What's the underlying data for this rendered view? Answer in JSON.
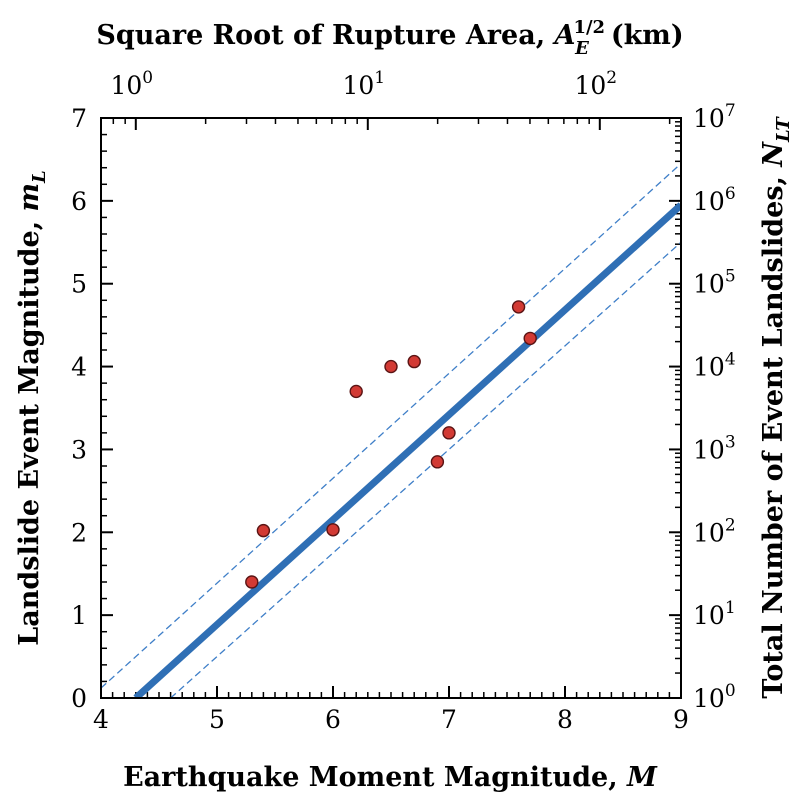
{
  "chart_data": {
    "type": "scatter",
    "xlabel": "Earthquake Moment Magnitude, ",
    "xlabel_symbol": "M",
    "ylabel": "Landslide Event Magnitude, ",
    "ylabel_symbol": "m",
    "ylabel_sub": "L",
    "top_label": "Square Root of Rupture Area, ",
    "top_label_symbol": "A",
    "top_label_sup": "1/2",
    "top_label_sub": "E",
    "top_label_units": "(km)",
    "right_label": "Total Number of Event Landslides, ",
    "right_label_symbol": "N",
    "right_label_sub": "LT",
    "xlim": [
      4,
      9
    ],
    "ylim": [
      0,
      7
    ],
    "x_ticks": [
      "4",
      "5",
      "6",
      "7",
      "8",
      "9"
    ],
    "y_ticks": [
      "0",
      "1",
      "2",
      "3",
      "4",
      "5",
      "6",
      "7"
    ],
    "top_ticks": [
      {
        "base": "10",
        "exp": "0",
        "M": 4.3
      },
      {
        "base": "10",
        "exp": "1",
        "M": 6.3
      },
      {
        "base": "10",
        "exp": "2",
        "M": 8.3
      }
    ],
    "right_ticks": [
      {
        "base": "10",
        "exp": "0",
        "mL": 0
      },
      {
        "base": "10",
        "exp": "1",
        "mL": 1
      },
      {
        "base": "10",
        "exp": "2",
        "mL": 2
      },
      {
        "base": "10",
        "exp": "3",
        "mL": 3
      },
      {
        "base": "10",
        "exp": "4",
        "mL": 4
      },
      {
        "base": "10",
        "exp": "5",
        "mL": 5
      },
      {
        "base": "10",
        "exp": "6",
        "mL": 6
      },
      {
        "base": "10",
        "exp": "7",
        "mL": 7
      }
    ],
    "points": [
      {
        "M": 5.3,
        "mL": 1.4
      },
      {
        "M": 5.4,
        "mL": 2.02
      },
      {
        "M": 6.0,
        "mL": 2.03
      },
      {
        "M": 6.2,
        "mL": 3.7
      },
      {
        "M": 6.5,
        "mL": 4.0
      },
      {
        "M": 6.7,
        "mL": 4.06
      },
      {
        "M": 6.9,
        "mL": 2.85
      },
      {
        "M": 7.0,
        "mL": 3.2
      },
      {
        "M": 7.6,
        "mL": 4.72
      },
      {
        "M": 7.7,
        "mL": 4.34
      }
    ],
    "fit_line": {
      "x": [
        4.3,
        9.0
      ],
      "y": [
        0.0,
        5.95
      ]
    },
    "bound_upper": {
      "x": [
        4.0,
        9.0
      ],
      "y": [
        0.12,
        6.45
      ]
    },
    "bound_lower": {
      "x": [
        4.6,
        9.0
      ],
      "y": [
        0.0,
        5.5
      ]
    },
    "colors": {
      "fit": "#2f6fb5",
      "bound": "#3f7fc8",
      "point_fill": "#d23a34",
      "point_stroke": "#5a1414"
    },
    "grid": false
  }
}
